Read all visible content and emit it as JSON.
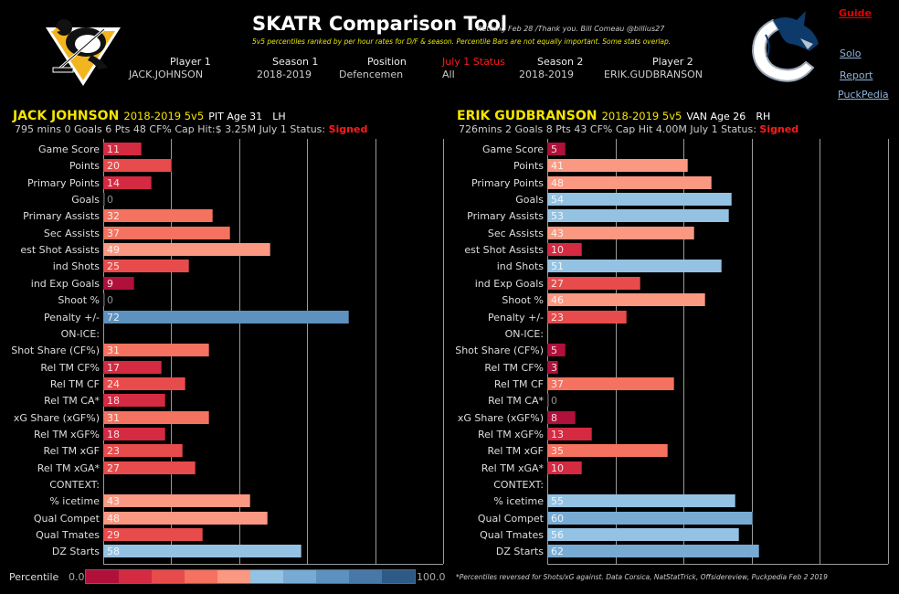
{
  "header": {
    "title": "SKATR Comparison Tool",
    "retiring_note": "Retiring  Feb 28 /Thank you. Bill Comeau @billius27",
    "subtitle": "5v5 percentiles ranked by per hour rates for D/F & season.  Percentile Bars are not equally important. Some stats overlap.",
    "filters": [
      {
        "label": "Player 1",
        "value": "JACK.JOHNSON",
        "label_color": "normal"
      },
      {
        "label": "Season 1",
        "value": "2018-2019",
        "label_color": "normal"
      },
      {
        "label": "Position",
        "value": "Defencemen",
        "label_color": "normal"
      },
      {
        "label": "July 1 Status",
        "value": "All",
        "label_color": "red"
      },
      {
        "label": "Season 2",
        "value": "2018-2019",
        "label_color": "normal"
      },
      {
        "label": "Player 2",
        "value": "ERIK.GUDBRANSON",
        "label_color": "normal"
      }
    ],
    "team1_logo": "pittsburgh-penguins-logo",
    "team2_logo": "vancouver-canucks-logo"
  },
  "nav": {
    "guide": "Guide",
    "solo": "Solo",
    "report": "Report",
    "puckpedia": "PuckPedia"
  },
  "players": [
    {
      "name": "JACK JOHNSON",
      "season": "2018-2019 5v5",
      "team_age": "PIT Age 31",
      "hand": "LH",
      "stats_line": "795 mins  0  Goals  6  Pts  48  CF%  Cap Hit:$ 3.25M   July 1 Status: ",
      "status": "Signed"
    },
    {
      "name": "ERIK GUDBRANSON",
      "season": "2018-2019 5v5",
      "team_age": "VAN Age 26",
      "hand": "RH",
      "stats_line": "726mins  2  Goals  8  Pts  43  CF%  Cap Hit  4.00M   July 1 Status: ",
      "status": "Signed"
    }
  ],
  "legend": {
    "label": "Percentile",
    "min": "0.0",
    "max": "100.0",
    "colors": [
      "#b0103a",
      "#d42a42",
      "#e84b4b",
      "#f4725f",
      "#fb9882",
      "#94c2e3",
      "#78abd3",
      "#5d91bf",
      "#4878a8",
      "#2e5a88"
    ]
  },
  "footnote": "*Percentiles reversed for Shots/xG against. Data Corsica, NatStatTrick, Offsidereview, Puckpedia  Feb 2 2019",
  "chart_data": [
    {
      "type": "bar",
      "orientation": "horizontal",
      "title": "JACK JOHNSON 2018-2019 5v5 percentiles",
      "categories": [
        "Game Score",
        "Points",
        "Primary Points",
        "Goals",
        "Primary Assists",
        "Sec Assists",
        "est Shot Assists",
        "ind Shots",
        "ind Exp Goals",
        "Shoot %",
        "Penalty +/-",
        "ON-ICE:",
        "Shot Share (CF%)",
        "Rel TM CF%",
        "Rel TM CF",
        "Rel TM CA*",
        "xG Share (xGF%)",
        "Rel TM xGF%",
        "Rel TM xGF",
        "Rel TM xGA*",
        "CONTEXT:",
        "% icetime",
        "Qual Compet",
        "Qual Tmates",
        "DZ Starts"
      ],
      "values": [
        11,
        20,
        14,
        0,
        32,
        37,
        49,
        25,
        9,
        0,
        72,
        null,
        31,
        17,
        24,
        18,
        31,
        18,
        23,
        27,
        null,
        43,
        48,
        29,
        58
      ],
      "xlim": [
        0,
        100
      ],
      "xticks": [
        0,
        20,
        40,
        60,
        80,
        100
      ],
      "grid": true,
      "xlabel": "",
      "ylabel": ""
    },
    {
      "type": "bar",
      "orientation": "horizontal",
      "title": "ERIK GUDBRANSON 2018-2019 5v5 percentiles",
      "categories": [
        "Game Score",
        "Points",
        "Primary Points",
        "Goals",
        "Primary Assists",
        "Sec Assists",
        "est Shot Assists",
        "ind Shots",
        "ind Exp Goals",
        "Shoot %",
        "Penalty +/-",
        "ON-ICE:",
        "Shot Share (CF%)",
        "Rel TM CF%",
        "Rel TM CF",
        "Rel TM CA*",
        "xG Share (xGF%)",
        "Rel TM xGF%",
        "Rel TM xGF",
        "Rel TM xGA*",
        "CONTEXT:",
        "% icetime",
        "Qual Compet",
        "Qual Tmates",
        "DZ Starts"
      ],
      "values": [
        5,
        41,
        48,
        54,
        53,
        43,
        10,
        51,
        27,
        46,
        23,
        null,
        5,
        3,
        37,
        0,
        8,
        13,
        35,
        10,
        null,
        55,
        60,
        56,
        62
      ],
      "xlim": [
        0,
        100
      ],
      "xticks": [
        0,
        20,
        40,
        60,
        80,
        100
      ],
      "grid": true,
      "xlabel": "",
      "ylabel": ""
    }
  ]
}
